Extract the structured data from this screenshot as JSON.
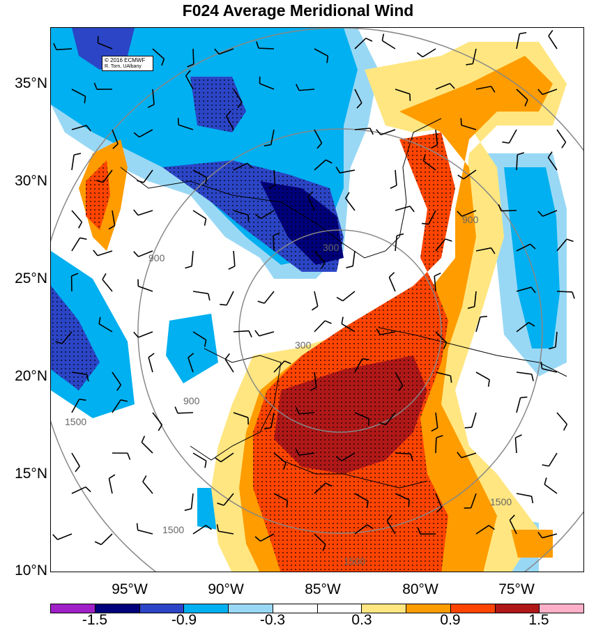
{
  "title": "F024 Average Meridional Wind",
  "credit": {
    "line1": "© 2016 ECMWF",
    "line2": "R. Torn, UAlbany"
  },
  "latitude_labels": [
    "35°N",
    "30°N",
    "25°N",
    "20°N",
    "15°N",
    "10°N"
  ],
  "longitude_labels": [
    "95°W",
    "90°W",
    "85°W",
    "80°W",
    "75°W"
  ],
  "colorbar": {
    "labels": [
      "-1.5",
      "-0.9",
      "-0.3",
      "0.3",
      "0.9",
      "1.5"
    ],
    "colors": [
      "#a020c8",
      "#00007a",
      "#2b45c6",
      "#00b0f0",
      "#99d8f5",
      "#ffffff",
      "#ffffff",
      "#ffe680",
      "#ff9c00",
      "#ff4400",
      "#b01818",
      "#ffb0c8"
    ]
  },
  "range_ring_labels": [
    "300",
    "900",
    "1500"
  ],
  "map_data": {
    "domain": {
      "lon": [
        -100,
        -73
      ],
      "lat": [
        10,
        37
      ]
    },
    "field": "Average Meridional Wind",
    "forecast_hour": "F024"
  }
}
